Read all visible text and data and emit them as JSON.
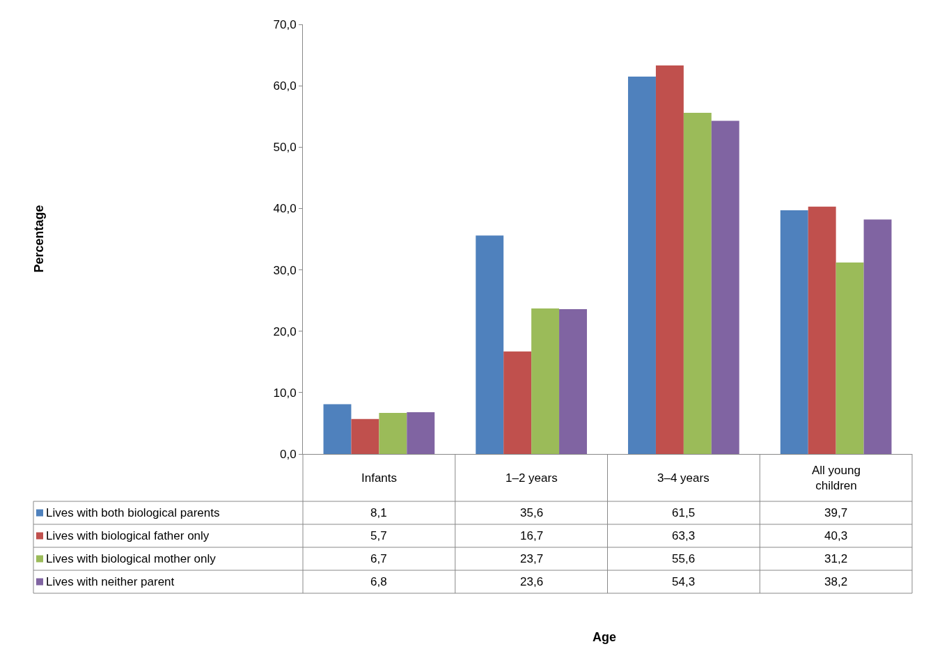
{
  "chart_data": {
    "type": "bar",
    "annotations": [
      "Percentage",
      "Age"
    ],
    "categories": [
      "Infants",
      "1–2 years",
      "3–4 years",
      "All young children"
    ],
    "series": [
      {
        "name": "Lives with both biological parents",
        "color": "#4f81bd",
        "values": [
          8.1,
          35.6,
          61.5,
          39.7
        ],
        "value_labels": [
          "8,1",
          "35,6",
          "61,5",
          "39,7"
        ]
      },
      {
        "name": "Lives with biological father only",
        "color": "#c0504d",
        "values": [
          5.7,
          16.7,
          63.3,
          40.3
        ],
        "value_labels": [
          "5,7",
          "16,7",
          "63,3",
          "40,3"
        ]
      },
      {
        "name": "Lives with biological mother only",
        "color": "#9bbb59",
        "values": [
          6.7,
          23.7,
          55.6,
          31.2
        ],
        "value_labels": [
          "6,7",
          "23,7",
          "55,6",
          "31,2"
        ]
      },
      {
        "name": "Lives with neither parent",
        "color": "#8064a2",
        "values": [
          6.8,
          23.6,
          54.3,
          38.2
        ],
        "value_labels": [
          "6,8",
          "23,6",
          "54,3",
          "38,2"
        ]
      }
    ],
    "ylim": [
      0,
      70
    ],
    "yticks": [
      {
        "value": 0,
        "label": "0,0"
      },
      {
        "value": 10,
        "label": "10,0"
      },
      {
        "value": 20,
        "label": "20,0"
      },
      {
        "value": 30,
        "label": "30,0"
      },
      {
        "value": 40,
        "label": "40,0"
      },
      {
        "value": 50,
        "label": "50,0"
      },
      {
        "value": 60,
        "label": "60,0"
      },
      {
        "value": 70,
        "label": "70,0"
      }
    ],
    "legend": "bottom"
  }
}
